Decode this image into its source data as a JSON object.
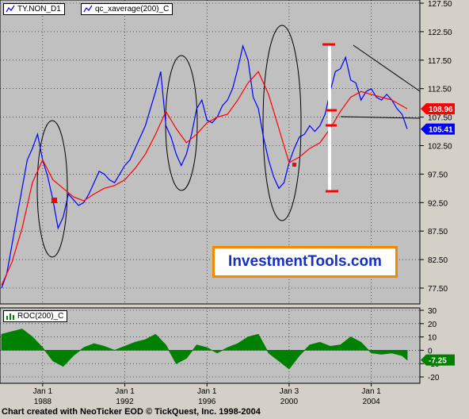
{
  "legend": {
    "price_series": "TY.NON_D1",
    "average_series": "qc_xaverage(200)_C",
    "roc_series": "ROC(200)_C"
  },
  "brand": {
    "label": "InvestmentTools.com"
  },
  "footer": {
    "credit": "Chart created with NeoTicker EOD © TickQuest, Inc. 1998-2004"
  },
  "colors": {
    "price_line": "#0000ff",
    "average_line": "#ff0000",
    "roc_fill": "#008000",
    "plot_bg": "#c0c0c0",
    "last_price_tag": "#0000ff",
    "average_tag": "#ff0000",
    "brand_border": "#f28a00",
    "brand_text": "#1530c8"
  },
  "chart_data": [
    {
      "type": "line",
      "series": [
        {
          "name": "TY.NON_D1",
          "x": [
            1986.0,
            1986.25,
            1986.5,
            1986.75,
            1987.0,
            1987.25,
            1987.5,
            1987.75,
            1988.0,
            1988.25,
            1988.5,
            1988.75,
            1989.0,
            1989.25,
            1989.5,
            1989.75,
            1990.0,
            1990.25,
            1990.5,
            1990.75,
            1991.0,
            1991.25,
            1991.5,
            1991.75,
            1992.0,
            1992.25,
            1992.5,
            1992.75,
            1993.0,
            1993.25,
            1993.5,
            1993.75,
            1994.0,
            1994.25,
            1994.5,
            1994.75,
            1995.0,
            1995.25,
            1995.5,
            1995.75,
            1996.0,
            1996.25,
            1996.5,
            1996.75,
            1997.0,
            1997.25,
            1997.5,
            1997.75,
            1998.0,
            1998.25,
            1998.5,
            1998.75,
            1999.0,
            1999.25,
            1999.5,
            1999.75,
            2000.0,
            2000.25,
            2000.5,
            2000.75,
            2001.0,
            2001.25,
            2001.5,
            2001.75,
            2002.0,
            2002.25,
            2002.5,
            2002.75,
            2003.0,
            2003.25,
            2003.5,
            2003.75,
            2004.0,
            2004.25,
            2004.5,
            2004.75,
            2005.0,
            2005.25,
            2005.5,
            2005.75
          ],
          "y": [
            77.5,
            80.0,
            85.0,
            90.0,
            95.0,
            100.0,
            102.0,
            104.5,
            100.0,
            97.0,
            93.0,
            88.0,
            90.0,
            94.0,
            93.0,
            92.0,
            92.5,
            94.0,
            96.0,
            98.0,
            97.5,
            96.5,
            96.0,
            97.5,
            99.0,
            100.0,
            102.0,
            104.0,
            106.0,
            109.0,
            112.0,
            115.5,
            106.0,
            104.0,
            101.0,
            99.0,
            101.0,
            104.5,
            109.0,
            110.5,
            107.0,
            106.5,
            107.5,
            109.5,
            110.5,
            112.5,
            116.0,
            120.0,
            117.5,
            111.0,
            109.0,
            104.0,
            100.0,
            97.0,
            95.0,
            96.0,
            99.5,
            102.0,
            104.0,
            104.5,
            106.0,
            105.0,
            106.0,
            108.0,
            112.0,
            115.5,
            116.0,
            118.0,
            114.0,
            113.5,
            110.5,
            112.0,
            112.5,
            111.0,
            110.5,
            111.5,
            110.5,
            109.0,
            108.0,
            105.41
          ]
        },
        {
          "name": "qc_xaverage(200)_C",
          "x": [
            1986.0,
            1986.5,
            1987.0,
            1987.5,
            1988.0,
            1988.5,
            1989.0,
            1989.5,
            1990.0,
            1990.5,
            1991.0,
            1991.5,
            1992.0,
            1992.5,
            1993.0,
            1993.5,
            1994.0,
            1994.5,
            1995.0,
            1995.5,
            1996.0,
            1996.5,
            1997.0,
            1997.5,
            1998.0,
            1998.5,
            1999.0,
            1999.5,
            2000.0,
            2000.5,
            2001.0,
            2001.5,
            2002.0,
            2002.5,
            2003.0,
            2003.5,
            2004.0,
            2004.5,
            2005.0,
            2005.75
          ],
          "y": [
            78.0,
            82.0,
            88.0,
            96.0,
            100.0,
            96.5,
            95.0,
            93.5,
            92.8,
            94.0,
            95.0,
            95.5,
            96.5,
            98.5,
            101.0,
            104.5,
            108.5,
            105.5,
            103.0,
            104.5,
            106.5,
            107.5,
            108.0,
            110.5,
            113.5,
            115.5,
            111.5,
            105.5,
            99.5,
            100.5,
            102.0,
            103.0,
            105.5,
            108.5,
            111.0,
            112.0,
            111.5,
            111.0,
            110.5,
            108.96
          ]
        }
      ],
      "xlabel": "",
      "ylabel": "",
      "x_tick_labels": [
        [
          "Jan 1",
          "1988"
        ],
        [
          "Jan 1",
          "1992"
        ],
        [
          "Jan 1",
          "1996"
        ],
        [
          "Jan 3",
          "2000"
        ],
        [
          "Jan 1",
          "2004"
        ]
      ],
      "y_tick_labels": [
        "127.50",
        "122.50",
        "117.50",
        "112.50",
        "107.50",
        "102.50",
        "97.50",
        "92.50",
        "87.50",
        "82.50",
        "77.50"
      ],
      "ylim": [
        75,
        128
      ],
      "grid": true,
      "value_tags": [
        "108.96",
        "105.41"
      ]
    },
    {
      "type": "area",
      "series": [
        {
          "name": "ROC(200)_C",
          "x": [
            1986.0,
            1986.5,
            1987.0,
            1987.5,
            1988.0,
            1988.5,
            1989.0,
            1989.5,
            1990.0,
            1990.5,
            1991.0,
            1991.5,
            1992.0,
            1992.5,
            1993.0,
            1993.5,
            1994.0,
            1994.5,
            1995.0,
            1995.5,
            1996.0,
            1996.5,
            1997.0,
            1997.5,
            1998.0,
            1998.5,
            1999.0,
            1999.5,
            2000.0,
            2000.5,
            2001.0,
            2001.5,
            2002.0,
            2002.5,
            2003.0,
            2003.5,
            2004.0,
            2004.5,
            2005.0,
            2005.5,
            2005.75
          ],
          "y": [
            12,
            14,
            16,
            10,
            2,
            -8,
            -12,
            -4,
            2,
            5,
            3,
            0,
            3,
            6,
            8,
            12,
            4,
            -10,
            -6,
            4,
            2,
            -2,
            2,
            5,
            10,
            12,
            -2,
            -8,
            -14,
            -4,
            4,
            6,
            3,
            4,
            10,
            6,
            -2,
            -3,
            -2,
            -4,
            -7.25
          ]
        }
      ],
      "y_tick_labels": [
        "30",
        "20",
        "10",
        "0",
        "-10",
        "-20"
      ],
      "ylim": [
        -20,
        30
      ],
      "value_tags": [
        "-7.25"
      ]
    }
  ]
}
